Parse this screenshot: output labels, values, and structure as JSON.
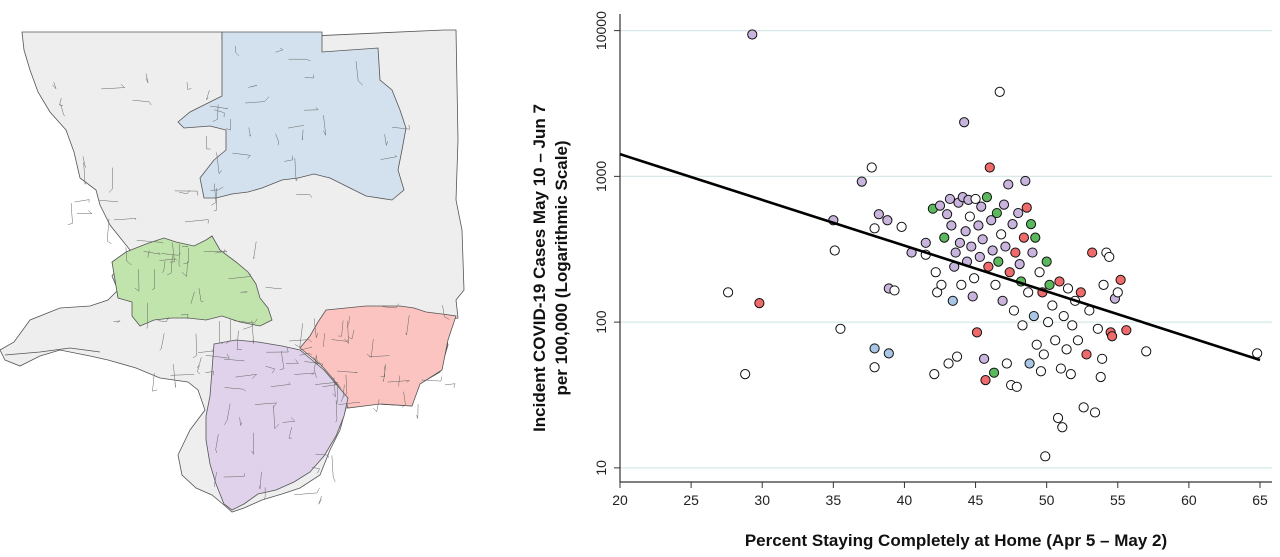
{
  "map": {
    "region_colors": {
      "base": "#eeeeee",
      "blue": "#d3e1ee",
      "green": "#c1e3ac",
      "red": "#fbc4c0",
      "purple": "#dfd2ea"
    },
    "border_color": "#555555"
  },
  "chart_data": {
    "type": "scatter",
    "xlabel": "Percent Staying Completely at Home (Apr 5 – May 2)",
    "ylabel_line1": "Incident COVID-19 Cases May 10 – Jun 7",
    "ylabel_line2": "per 100,000 (Logarithmic Scale)",
    "xlim": [
      20,
      65
    ],
    "ylim": [
      8,
      13000
    ],
    "y_scale": "log",
    "x_ticks": [
      "20",
      "25",
      "30",
      "35",
      "40",
      "45",
      "50",
      "55",
      "60",
      "65"
    ],
    "y_ticks": [
      "10",
      "100",
      "1000",
      "10000"
    ],
    "grid": "horizontal",
    "point_colors": {
      "white": "#ffffff",
      "purple": "#c8b4dc",
      "green": "#5cb85c",
      "red": "#ef6b6b",
      "blue": "#a9c6e4"
    },
    "regression_line": {
      "x": [
        20,
        65
      ],
      "y": [
        1420,
        55
      ]
    },
    "points": [
      {
        "x": 29.3,
        "y": 9400,
        "c": "purple"
      },
      {
        "x": 27.6,
        "y": 160,
        "c": "white"
      },
      {
        "x": 28.8,
        "y": 44,
        "c": "white"
      },
      {
        "x": 29.8,
        "y": 135,
        "c": "red"
      },
      {
        "x": 35.0,
        "y": 500,
        "c": "purple"
      },
      {
        "x": 35.1,
        "y": 310,
        "c": "white"
      },
      {
        "x": 35.5,
        "y": 90,
        "c": "white"
      },
      {
        "x": 37.0,
        "y": 920,
        "c": "purple"
      },
      {
        "x": 37.7,
        "y": 1150,
        "c": "white"
      },
      {
        "x": 37.9,
        "y": 440,
        "c": "white"
      },
      {
        "x": 38.2,
        "y": 550,
        "c": "purple"
      },
      {
        "x": 38.8,
        "y": 500,
        "c": "purple"
      },
      {
        "x": 37.9,
        "y": 66,
        "c": "blue"
      },
      {
        "x": 38.9,
        "y": 61,
        "c": "blue"
      },
      {
        "x": 37.9,
        "y": 49,
        "c": "white"
      },
      {
        "x": 38.9,
        "y": 170,
        "c": "purple"
      },
      {
        "x": 39.3,
        "y": 165,
        "c": "white"
      },
      {
        "x": 39.8,
        "y": 450,
        "c": "white"
      },
      {
        "x": 40.5,
        "y": 300,
        "c": "purple"
      },
      {
        "x": 41.5,
        "y": 350,
        "c": "purple"
      },
      {
        "x": 41.5,
        "y": 290,
        "c": "white"
      },
      {
        "x": 42.0,
        "y": 600,
        "c": "green"
      },
      {
        "x": 42.2,
        "y": 220,
        "c": "white"
      },
      {
        "x": 42.1,
        "y": 44,
        "c": "white"
      },
      {
        "x": 42.3,
        "y": 160,
        "c": "white"
      },
      {
        "x": 42.5,
        "y": 630,
        "c": "purple"
      },
      {
        "x": 42.6,
        "y": 180,
        "c": "white"
      },
      {
        "x": 42.8,
        "y": 380,
        "c": "green"
      },
      {
        "x": 43.0,
        "y": 550,
        "c": "purple"
      },
      {
        "x": 43.1,
        "y": 52,
        "c": "white"
      },
      {
        "x": 43.2,
        "y": 700,
        "c": "purple"
      },
      {
        "x": 43.3,
        "y": 460,
        "c": "purple"
      },
      {
        "x": 43.4,
        "y": 140,
        "c": "blue"
      },
      {
        "x": 43.5,
        "y": 240,
        "c": "purple"
      },
      {
        "x": 43.6,
        "y": 300,
        "c": "purple"
      },
      {
        "x": 43.7,
        "y": 58,
        "c": "white"
      },
      {
        "x": 43.8,
        "y": 660,
        "c": "purple"
      },
      {
        "x": 43.9,
        "y": 350,
        "c": "purple"
      },
      {
        "x": 44.0,
        "y": 180,
        "c": "white"
      },
      {
        "x": 44.1,
        "y": 720,
        "c": "purple"
      },
      {
        "x": 44.2,
        "y": 2350,
        "c": "purple"
      },
      {
        "x": 44.3,
        "y": 420,
        "c": "purple"
      },
      {
        "x": 44.4,
        "y": 260,
        "c": "purple"
      },
      {
        "x": 44.5,
        "y": 690,
        "c": "purple"
      },
      {
        "x": 44.6,
        "y": 530,
        "c": "white"
      },
      {
        "x": 44.7,
        "y": 330,
        "c": "purple"
      },
      {
        "x": 44.8,
        "y": 150,
        "c": "purple"
      },
      {
        "x": 44.9,
        "y": 200,
        "c": "white"
      },
      {
        "x": 45.0,
        "y": 700,
        "c": "white"
      },
      {
        "x": 45.1,
        "y": 85,
        "c": "red"
      },
      {
        "x": 45.2,
        "y": 460,
        "c": "purple"
      },
      {
        "x": 45.3,
        "y": 280,
        "c": "purple"
      },
      {
        "x": 45.4,
        "y": 620,
        "c": "purple"
      },
      {
        "x": 45.5,
        "y": 370,
        "c": "purple"
      },
      {
        "x": 45.6,
        "y": 56,
        "c": "purple"
      },
      {
        "x": 45.7,
        "y": 40,
        "c": "red"
      },
      {
        "x": 45.8,
        "y": 720,
        "c": "green"
      },
      {
        "x": 45.9,
        "y": 240,
        "c": "red"
      },
      {
        "x": 46.0,
        "y": 1150,
        "c": "red"
      },
      {
        "x": 46.1,
        "y": 500,
        "c": "purple"
      },
      {
        "x": 46.2,
        "y": 310,
        "c": "purple"
      },
      {
        "x": 46.3,
        "y": 45,
        "c": "green"
      },
      {
        "x": 46.4,
        "y": 180,
        "c": "white"
      },
      {
        "x": 46.5,
        "y": 560,
        "c": "green"
      },
      {
        "x": 46.6,
        "y": 260,
        "c": "green"
      },
      {
        "x": 46.7,
        "y": 3800,
        "c": "white"
      },
      {
        "x": 46.8,
        "y": 400,
        "c": "white"
      },
      {
        "x": 46.9,
        "y": 140,
        "c": "purple"
      },
      {
        "x": 47.0,
        "y": 640,
        "c": "purple"
      },
      {
        "x": 47.1,
        "y": 330,
        "c": "purple"
      },
      {
        "x": 47.2,
        "y": 52,
        "c": "white"
      },
      {
        "x": 47.3,
        "y": 880,
        "c": "purple"
      },
      {
        "x": 47.4,
        "y": 220,
        "c": "red"
      },
      {
        "x": 47.5,
        "y": 37,
        "c": "white"
      },
      {
        "x": 47.6,
        "y": 470,
        "c": "purple"
      },
      {
        "x": 47.7,
        "y": 120,
        "c": "white"
      },
      {
        "x": 47.8,
        "y": 300,
        "c": "red"
      },
      {
        "x": 47.9,
        "y": 36,
        "c": "white"
      },
      {
        "x": 48.0,
        "y": 560,
        "c": "purple"
      },
      {
        "x": 48.1,
        "y": 250,
        "c": "purple"
      },
      {
        "x": 48.2,
        "y": 190,
        "c": "green"
      },
      {
        "x": 48.3,
        "y": 95,
        "c": "white"
      },
      {
        "x": 48.4,
        "y": 380,
        "c": "red"
      },
      {
        "x": 48.5,
        "y": 930,
        "c": "purple"
      },
      {
        "x": 48.6,
        "y": 610,
        "c": "red"
      },
      {
        "x": 48.7,
        "y": 160,
        "c": "white"
      },
      {
        "x": 48.8,
        "y": 52,
        "c": "blue"
      },
      {
        "x": 48.9,
        "y": 470,
        "c": "green"
      },
      {
        "x": 49.0,
        "y": 300,
        "c": "purple"
      },
      {
        "x": 49.1,
        "y": 110,
        "c": "blue"
      },
      {
        "x": 49.2,
        "y": 380,
        "c": "green"
      },
      {
        "x": 49.3,
        "y": 70,
        "c": "white"
      },
      {
        "x": 49.5,
        "y": 220,
        "c": "white"
      },
      {
        "x": 49.6,
        "y": 46,
        "c": "white"
      },
      {
        "x": 49.7,
        "y": 160,
        "c": "red"
      },
      {
        "x": 49.8,
        "y": 60,
        "c": "white"
      },
      {
        "x": 49.9,
        "y": 12,
        "c": "white"
      },
      {
        "x": 50.0,
        "y": 260,
        "c": "green"
      },
      {
        "x": 50.1,
        "y": 100,
        "c": "white"
      },
      {
        "x": 50.2,
        "y": 180,
        "c": "green"
      },
      {
        "x": 50.4,
        "y": 130,
        "c": "white"
      },
      {
        "x": 50.6,
        "y": 75,
        "c": "white"
      },
      {
        "x": 50.8,
        "y": 22,
        "c": "white"
      },
      {
        "x": 50.9,
        "y": 190,
        "c": "red"
      },
      {
        "x": 51.0,
        "y": 48,
        "c": "white"
      },
      {
        "x": 51.1,
        "y": 19,
        "c": "white"
      },
      {
        "x": 51.2,
        "y": 110,
        "c": "white"
      },
      {
        "x": 51.4,
        "y": 65,
        "c": "white"
      },
      {
        "x": 51.5,
        "y": 170,
        "c": "white"
      },
      {
        "x": 51.7,
        "y": 44,
        "c": "white"
      },
      {
        "x": 51.8,
        "y": 95,
        "c": "white"
      },
      {
        "x": 52.0,
        "y": 140,
        "c": "white"
      },
      {
        "x": 52.2,
        "y": 75,
        "c": "white"
      },
      {
        "x": 52.4,
        "y": 160,
        "c": "red"
      },
      {
        "x": 52.6,
        "y": 26,
        "c": "white"
      },
      {
        "x": 52.8,
        "y": 60,
        "c": "red"
      },
      {
        "x": 53.0,
        "y": 120,
        "c": "white"
      },
      {
        "x": 53.2,
        "y": 300,
        "c": "red"
      },
      {
        "x": 53.4,
        "y": 24,
        "c": "white"
      },
      {
        "x": 53.6,
        "y": 90,
        "c": "white"
      },
      {
        "x": 53.8,
        "y": 42,
        "c": "white"
      },
      {
        "x": 53.9,
        "y": 56,
        "c": "white"
      },
      {
        "x": 54.0,
        "y": 180,
        "c": "white"
      },
      {
        "x": 54.2,
        "y": 300,
        "c": "white"
      },
      {
        "x": 54.4,
        "y": 280,
        "c": "white"
      },
      {
        "x": 54.5,
        "y": 85,
        "c": "red"
      },
      {
        "x": 54.6,
        "y": 80,
        "c": "red"
      },
      {
        "x": 54.8,
        "y": 145,
        "c": "purple"
      },
      {
        "x": 55.0,
        "y": 160,
        "c": "white"
      },
      {
        "x": 55.2,
        "y": 195,
        "c": "red"
      },
      {
        "x": 55.6,
        "y": 88,
        "c": "red"
      },
      {
        "x": 57.0,
        "y": 63,
        "c": "white"
      },
      {
        "x": 64.8,
        "y": 61,
        "c": "white"
      }
    ]
  }
}
